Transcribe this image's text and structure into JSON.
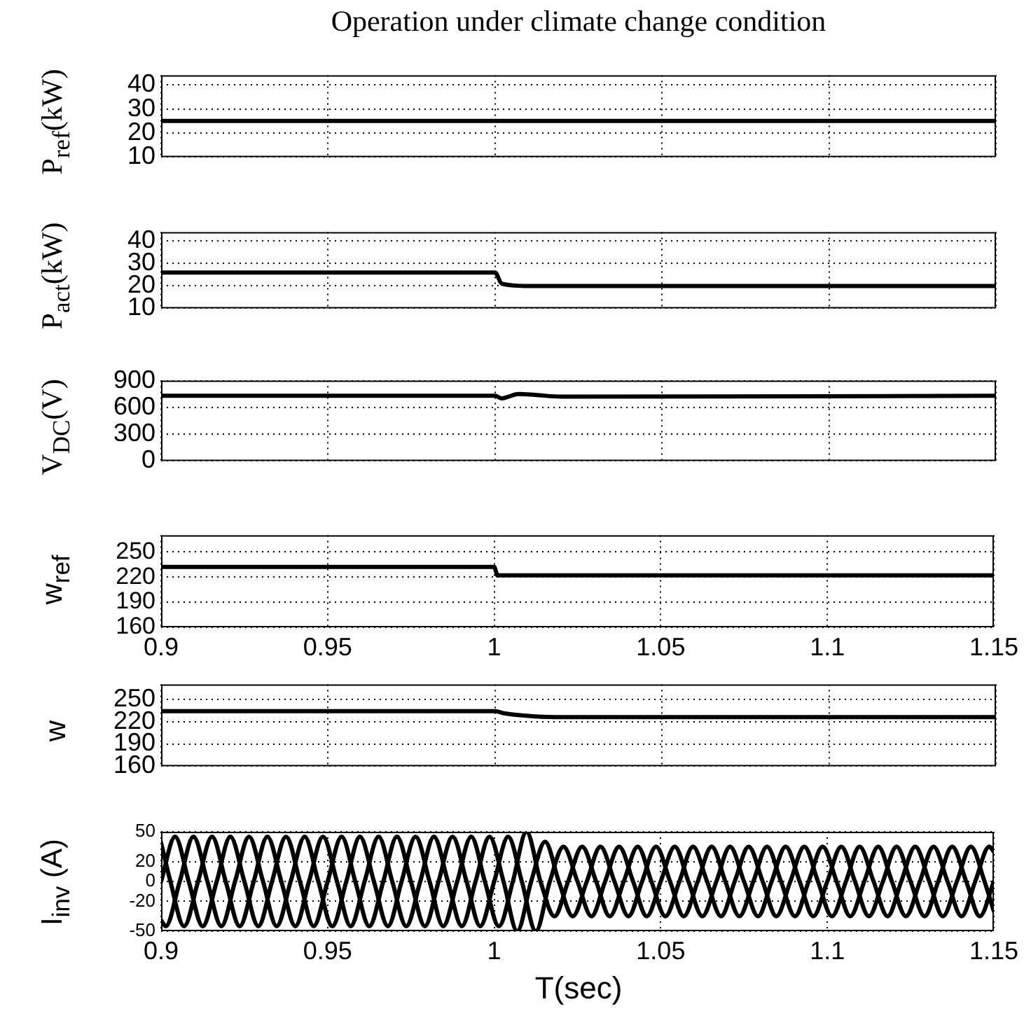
{
  "chart_data": [
    {
      "type": "line",
      "title": "Operation under climate change condition",
      "ylabel": "P$_{ref}$(kW)",
      "xlim": [
        0.9,
        1.15
      ],
      "xticks": [
        0.9,
        0.95,
        1,
        1.05,
        1.1,
        1.15
      ],
      "ylim": [
        10,
        44
      ],
      "yticks": [
        10,
        20,
        30,
        40
      ],
      "grid": true,
      "tick_labels": "y",
      "marker": "none",
      "line_style": "solid",
      "series": [
        {
          "color": "#000000",
          "x": [
            0.9,
            1.15
          ],
          "values": [
            25,
            25
          ]
        }
      ]
    },
    {
      "type": "line",
      "ylabel": "P$_{act}$(kW)",
      "xlim": [
        0.9,
        1.15
      ],
      "xticks": [
        0.9,
        0.95,
        1,
        1.05,
        1.1,
        1.15
      ],
      "ylim": [
        10,
        44
      ],
      "yticks": [
        10,
        20,
        30,
        40
      ],
      "grid": true,
      "tick_labels": "y",
      "marker": "none",
      "line_style": "solid",
      "series": [
        {
          "color": "#000000",
          "x": [
            0.9,
            1.0,
            1.002,
            1.009,
            1.15
          ],
          "values": [
            26,
            26,
            21,
            20,
            20
          ]
        }
      ]
    },
    {
      "type": "line",
      "ylabel": "V$_{DC}$(V)",
      "xlim": [
        0.9,
        1.15
      ],
      "xticks": [
        0.9,
        0.95,
        1,
        1.05,
        1.1,
        1.15
      ],
      "ylim": [
        0,
        900
      ],
      "yticks": [
        0,
        300,
        600,
        900
      ],
      "grid": true,
      "tick_labels": "y",
      "marker": "none",
      "line_style": "solid",
      "series": [
        {
          "color": "#000000",
          "x": [
            0.9,
            1.0,
            1.002,
            1.004,
            1.007,
            1.012,
            1.02,
            1.15
          ],
          "values": [
            730,
            730,
            700,
            720,
            750,
            740,
            720,
            730
          ]
        }
      ]
    },
    {
      "type": "line",
      "ylabel": "w$_{ref}$",
      "xlim": [
        0.9,
        1.15
      ],
      "xticks": [
        0.9,
        0.95,
        1,
        1.05,
        1.1,
        1.15
      ],
      "ylim": [
        160,
        270
      ],
      "yticks": [
        160,
        190,
        220,
        250
      ],
      "grid": true,
      "marker": "none",
      "line_style": "solid",
      "series": [
        {
          "color": "#000000",
          "x": [
            0.9,
            1.0,
            1.001,
            1.15
          ],
          "values": [
            232,
            232,
            222,
            222
          ]
        }
      ]
    },
    {
      "type": "line",
      "ylabel": "w",
      "xlim": [
        0.9,
        1.15
      ],
      "xticks": [
        0.9,
        0.95,
        1,
        1.05,
        1.1,
        1.15
      ],
      "ylim": [
        160,
        270
      ],
      "yticks": [
        160,
        190,
        220,
        250
      ],
      "grid": true,
      "tick_labels": "y",
      "marker": "none",
      "line_style": "solid",
      "series": [
        {
          "color": "#000000",
          "x": [
            0.9,
            1.0,
            1.003,
            1.012,
            1.02,
            1.15
          ],
          "values": [
            234,
            234,
            231,
            227,
            226,
            226
          ]
        }
      ]
    },
    {
      "type": "line",
      "ylabel": "I$_{inv}$ (A)",
      "xlabel": "T(sec)",
      "xlim": [
        0.9,
        1.15
      ],
      "xticks": [
        0.9,
        0.95,
        1,
        1.05,
        1.1,
        1.15
      ],
      "ylim": [
        -50,
        50
      ],
      "yticks": [
        -50,
        -20,
        0,
        20,
        50
      ],
      "grid": true,
      "marker": "none",
      "line_style": "solid",
      "series": [
        {
          "color": "#000000",
          "x": [
            0.9,
            0.9042,
            0.9083,
            0.9125,
            0.9167,
            0.9208,
            0.925,
            0.9292,
            0.9333,
            0.9375,
            0.9417,
            0.9458,
            0.95,
            0.9542,
            0.9583,
            0.9625,
            0.9667,
            0.9708,
            0.975,
            0.9792,
            0.9833,
            0.9875,
            0.9917,
            0.9958,
            1.0,
            1.0042,
            1.0083,
            1.0125,
            1.0167,
            1.0208,
            1.025,
            1.0292,
            1.0333,
            1.0375,
            1.0417,
            1.0458,
            1.05,
            1.0542,
            1.0583,
            1.0625,
            1.0667,
            1.0708,
            1.075,
            1.0792,
            1.0833,
            1.0875,
            1.0917,
            1.0958,
            1.1,
            1.1042,
            1.1083,
            1.1125,
            1.1167,
            1.1208,
            1.125,
            1.1292,
            1.1333,
            1.1375,
            1.1417,
            1.1458,
            1.15
          ],
          "values": [
            0,
            45,
            0,
            -45,
            0,
            45,
            0,
            -45,
            0,
            45,
            0,
            -45,
            0,
            45,
            0,
            -45,
            0,
            45,
            0,
            -45,
            0,
            45,
            0,
            -45,
            0,
            45,
            0,
            -50,
            0,
            35,
            0,
            -35,
            0,
            35,
            0,
            -35,
            0,
            35,
            0,
            -35,
            0,
            35,
            0,
            -35,
            0,
            35,
            0,
            -35,
            0,
            35,
            0,
            -35,
            0,
            35,
            0,
            -35,
            0,
            35,
            0,
            -35,
            0
          ]
        },
        {
          "color": "#000000",
          "x": [
            0.9,
            0.9014,
            0.9056,
            0.9097,
            0.9139,
            0.9181,
            0.9222,
            0.9264,
            0.9306,
            0.9347,
            0.9389,
            0.9431,
            0.9472,
            0.9514,
            0.9556,
            0.9597,
            0.9639,
            0.9681,
            0.9722,
            0.9764,
            0.9806,
            0.9847,
            0.9889,
            0.9931,
            0.9972,
            1.0014,
            1.0056,
            1.0097,
            1.0139,
            1.0181,
            1.0222,
            1.0264,
            1.0306,
            1.0347,
            1.0389,
            1.0431,
            1.0472,
            1.0514,
            1.0556,
            1.0597,
            1.0639,
            1.0681,
            1.0722,
            1.0764,
            1.0806,
            1.0847,
            1.0889,
            1.0931,
            1.0972,
            1.1014,
            1.1056,
            1.1097,
            1.1139,
            1.1181,
            1.1222,
            1.1264,
            1.1306,
            1.1347,
            1.1389,
            1.1431,
            1.1472,
            1.15
          ],
          "values": [
            -39,
            -45,
            0,
            45,
            0,
            -45,
            0,
            45,
            0,
            -45,
            0,
            45,
            0,
            -45,
            0,
            45,
            0,
            -45,
            0,
            45,
            0,
            -45,
            0,
            45,
            0,
            -45,
            0,
            50,
            0,
            -35,
            0,
            35,
            0,
            -35,
            0,
            35,
            0,
            -35,
            0,
            35,
            0,
            -35,
            0,
            35,
            0,
            -35,
            0,
            35,
            0,
            -35,
            0,
            35,
            0,
            -35,
            0,
            35,
            0,
            -35,
            0,
            35,
            0,
            -30
          ]
        },
        {
          "color": "#000000",
          "x": [
            0.9,
            0.9028,
            0.9069,
            0.9111,
            0.9153,
            0.9194,
            0.9236,
            0.9278,
            0.9319,
            0.9361,
            0.9403,
            0.9444,
            0.9486,
            0.9528,
            0.9569,
            0.9611,
            0.9653,
            0.9694,
            0.9736,
            0.9778,
            0.9819,
            0.9861,
            0.9903,
            0.9944,
            0.9986,
            1.0028,
            1.0069,
            1.0111,
            1.0153,
            1.0194,
            1.0236,
            1.0278,
            1.0319,
            1.0361,
            1.0403,
            1.0444,
            1.0486,
            1.0528,
            1.0569,
            1.0611,
            1.0653,
            1.0694,
            1.0736,
            1.0778,
            1.0819,
            1.0861,
            1.0903,
            1.0944,
            1.0986,
            1.1028,
            1.1069,
            1.1111,
            1.1153,
            1.1194,
            1.1236,
            1.1278,
            1.1319,
            1.1361,
            1.1403,
            1.1444,
            1.1486,
            1.15
          ],
          "values": [
            39,
            0,
            -45,
            0,
            45,
            0,
            -45,
            0,
            45,
            0,
            -45,
            0,
            45,
            0,
            -45,
            0,
            45,
            0,
            -45,
            0,
            45,
            0,
            -45,
            0,
            45,
            0,
            -50,
            0,
            40,
            0,
            -35,
            0,
            35,
            0,
            -35,
            0,
            35,
            0,
            -35,
            0,
            35,
            0,
            -35,
            0,
            35,
            0,
            -35,
            0,
            35,
            0,
            -35,
            0,
            35,
            0,
            -35,
            0,
            35,
            0,
            -35,
            0,
            35,
            30
          ]
        }
      ]
    }
  ]
}
